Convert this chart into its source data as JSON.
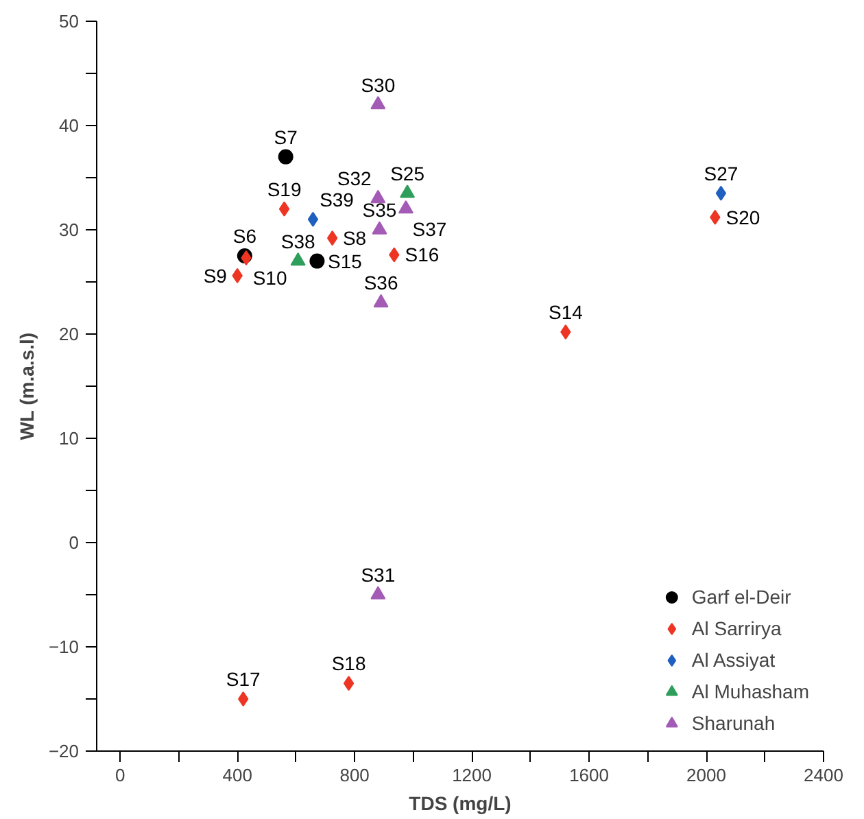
{
  "chart_data": {
    "type": "scatter",
    "xlabel": "TDS (mg/L)",
    "ylabel": "WL (m.a.s.l)",
    "xlim": [
      -80,
      2400
    ],
    "ylim": [
      -20,
      50
    ],
    "xticks": [
      0,
      {
        "value": 200,
        "label": null
      },
      400,
      {
        "value": 600,
        "label": null
      },
      800,
      {
        "value": 1000,
        "label": null
      },
      1200,
      {
        "value": 1400,
        "label": null
      },
      1600,
      {
        "value": 1800,
        "label": null
      },
      2000,
      {
        "value": 2200,
        "label": null
      },
      2400
    ],
    "yticks": [
      -20,
      {
        "value": -15,
        "label": null
      },
      -10,
      {
        "value": -5,
        "label": null
      },
      0,
      {
        "value": 5,
        "label": null
      },
      10,
      {
        "value": 15,
        "label": null
      },
      20,
      {
        "value": 25,
        "label": null
      },
      30,
      {
        "value": 35,
        "label": null
      },
      40,
      {
        "value": 45,
        "label": null
      },
      50
    ],
    "grid": false,
    "legend": "bottom right",
    "series": [
      {
        "name": "Garf el-Deir",
        "color": "#000000",
        "marker": "circle",
        "x": [
          565,
          672,
          425
        ],
        "values": [
          37,
          27,
          27.5
        ]
      },
      {
        "name": "Al Sarrirya",
        "color": "#ee3524",
        "marker": "diamond",
        "x": [
          560,
          724,
          430,
          400,
          935,
          1520,
          2030,
          420,
          780
        ],
        "values": [
          32,
          29.2,
          27.3,
          25.6,
          27.6,
          20.2,
          31.2,
          -15,
          -13.5
        ]
      },
      {
        "name": "Al Assiyat",
        "color": "#1f5fbf",
        "marker": "diamond",
        "x": [
          658,
          2050
        ],
        "values": [
          31,
          33.5
        ]
      },
      {
        "name": "Al Muhasham",
        "color": "#2e9e5b",
        "marker": "triangle",
        "x": [
          607,
          980
        ],
        "values": [
          27,
          33.5
        ]
      },
      {
        "name": "Sharunah",
        "color": "#a35bb5",
        "marker": "triangle",
        "x": [
          880,
          880,
          975,
          885,
          890,
          880
        ],
        "values": [
          42,
          33,
          32,
          30,
          23,
          -5
        ]
      }
    ],
    "annotations": [
      {
        "text": "S7",
        "x": 565,
        "y": 37
      },
      {
        "text": "S15",
        "x": 672,
        "y": 27
      },
      {
        "text": "S6",
        "x": 425,
        "y": 27.5
      },
      {
        "text": "S19",
        "x": 560,
        "y": 32
      },
      {
        "text": "S8",
        "x": 724,
        "y": 29.2
      },
      {
        "text": "S10",
        "x": 430,
        "y": 27.3
      },
      {
        "text": "S9",
        "x": 400,
        "y": 25.6
      },
      {
        "text": "S16",
        "x": 935,
        "y": 27.6
      },
      {
        "text": "S14",
        "x": 1520,
        "y": 20.2
      },
      {
        "text": "S20",
        "x": 2030,
        "y": 31.2
      },
      {
        "text": "S17",
        "x": 420,
        "y": -15
      },
      {
        "text": "S18",
        "x": 780,
        "y": -13.5
      },
      {
        "text": "S39",
        "x": 658,
        "y": 31
      },
      {
        "text": "S27",
        "x": 2050,
        "y": 33.5
      },
      {
        "text": "S38",
        "x": 607,
        "y": 27
      },
      {
        "text": "S25",
        "x": 980,
        "y": 33.5
      },
      {
        "text": "S30",
        "x": 880,
        "y": 42
      },
      {
        "text": "S32",
        "x": 880,
        "y": 33
      },
      {
        "text": "S37",
        "x": 975,
        "y": 32
      },
      {
        "text": "S35",
        "x": 885,
        "y": 30
      },
      {
        "text": "S36",
        "x": 890,
        "y": 23
      },
      {
        "text": "S31",
        "x": 880,
        "y": -5
      }
    ]
  }
}
